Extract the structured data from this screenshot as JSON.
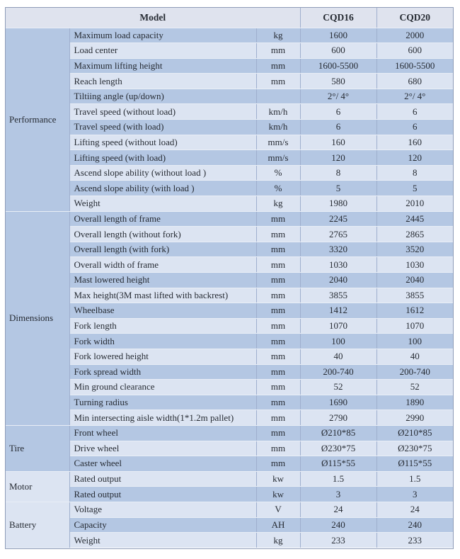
{
  "colors": {
    "header_bg": "#dfe3ee",
    "band_dark": "#b4c7e3",
    "band_light": "#dce4f2",
    "border_outer": "#8e9cb8",
    "border_vertical": "#9fafce",
    "border_row": "#e9eef6",
    "text": "#262b33"
  },
  "header": {
    "model_label": "Model",
    "model_columns": [
      "CQD16",
      "CQD20"
    ]
  },
  "sections": [
    {
      "name": "Performance",
      "rows": [
        {
          "param": "Maximum load capacity",
          "unit": "kg",
          "values": [
            "1600",
            "2000"
          ]
        },
        {
          "param": "Load center",
          "unit": "mm",
          "values": [
            "600",
            "600"
          ]
        },
        {
          "param": "Maximum lifting height",
          "unit": "mm",
          "values": [
            "1600-5500",
            "1600-5500"
          ]
        },
        {
          "param": "Reach length",
          "unit": "mm",
          "values": [
            "580",
            "680"
          ]
        },
        {
          "param": "Tiltiing angle (up/down)",
          "unit": "",
          "values": [
            "2°/ 4°",
            "2°/ 4°"
          ]
        },
        {
          "param": "Travel speed (without load)",
          "unit": "km/h",
          "values": [
            "6",
            "6"
          ]
        },
        {
          "param": "Travel speed (with load)",
          "unit": "km/h",
          "values": [
            "6",
            "6"
          ]
        },
        {
          "param": "Lifting speed (without load)",
          "unit": "mm/s",
          "values": [
            "160",
            "160"
          ]
        },
        {
          "param": "Lifting speed (with load)",
          "unit": "mm/s",
          "values": [
            "120",
            "120"
          ]
        },
        {
          "param": "Ascend slope ability (without load )",
          "unit": "%",
          "values": [
            "8",
            "8"
          ]
        },
        {
          "param": "Ascend slope ability (with load )",
          "unit": "%",
          "values": [
            "5",
            "5"
          ]
        },
        {
          "param": "Weight",
          "unit": "kg",
          "values": [
            "1980",
            "2010"
          ]
        }
      ]
    },
    {
      "name": "Dimensions",
      "rows": [
        {
          "param": "Overall length of frame",
          "unit": "mm",
          "values": [
            "2245",
            "2445"
          ]
        },
        {
          "param": "Overall length (without fork)",
          "unit": "mm",
          "values": [
            "2765",
            "2865"
          ]
        },
        {
          "param": "Overall length (with fork)",
          "unit": "mm",
          "values": [
            "3320",
            "3520"
          ]
        },
        {
          "param": "Overall width of frame",
          "unit": "mm",
          "values": [
            "1030",
            "1030"
          ]
        },
        {
          "param": "Mast lowered height",
          "unit": "mm",
          "values": [
            "2040",
            "2040"
          ]
        },
        {
          "param": "Max height(3M mast lifted with backrest)",
          "unit": "mm",
          "values": [
            "3855",
            "3855"
          ]
        },
        {
          "param": "Wheelbase",
          "unit": "mm",
          "values": [
            "1412",
            "1612"
          ]
        },
        {
          "param": "Fork length",
          "unit": "mm",
          "values": [
            "1070",
            "1070"
          ]
        },
        {
          "param": "Fork width",
          "unit": "mm",
          "values": [
            "100",
            "100"
          ]
        },
        {
          "param": "Fork lowered height",
          "unit": "mm",
          "values": [
            "40",
            "40"
          ]
        },
        {
          "param": "Fork spread width",
          "unit": "mm",
          "values": [
            "200-740",
            "200-740"
          ]
        },
        {
          "param": "Min ground clearance",
          "unit": "mm",
          "values": [
            "52",
            "52"
          ]
        },
        {
          "param": "Turning radius",
          "unit": "mm",
          "values": [
            "1690",
            "1890"
          ]
        },
        {
          "param": "Min intersecting aisle width(1*1.2m pallet)",
          "unit": "mm",
          "values": [
            "2790",
            "2990"
          ]
        }
      ]
    },
    {
      "name": "Tire",
      "rows": [
        {
          "param": "Front wheel",
          "unit": "mm",
          "values": [
            "Ø210*85",
            "Ø210*85"
          ]
        },
        {
          "param": "Drive wheel",
          "unit": "mm",
          "values": [
            "Ø230*75",
            "Ø230*75"
          ]
        },
        {
          "param": "Caster wheel",
          "unit": "mm",
          "values": [
            "Ø115*55",
            "Ø115*55"
          ]
        }
      ]
    },
    {
      "name": "Motor",
      "rows": [
        {
          "param": "Rated output",
          "unit": "kw",
          "values": [
            "1.5",
            "1.5"
          ]
        },
        {
          "param": "Rated output",
          "unit": "kw",
          "values": [
            "3",
            "3"
          ]
        }
      ]
    },
    {
      "name": "Battery",
      "rows": [
        {
          "param": "Voltage",
          "unit": "V",
          "values": [
            "24",
            "24"
          ]
        },
        {
          "param": "Capacity",
          "unit": "AH",
          "values": [
            "240",
            "240"
          ]
        },
        {
          "param": "Weight",
          "unit": "kg",
          "values": [
            "233",
            "233"
          ]
        }
      ]
    }
  ]
}
